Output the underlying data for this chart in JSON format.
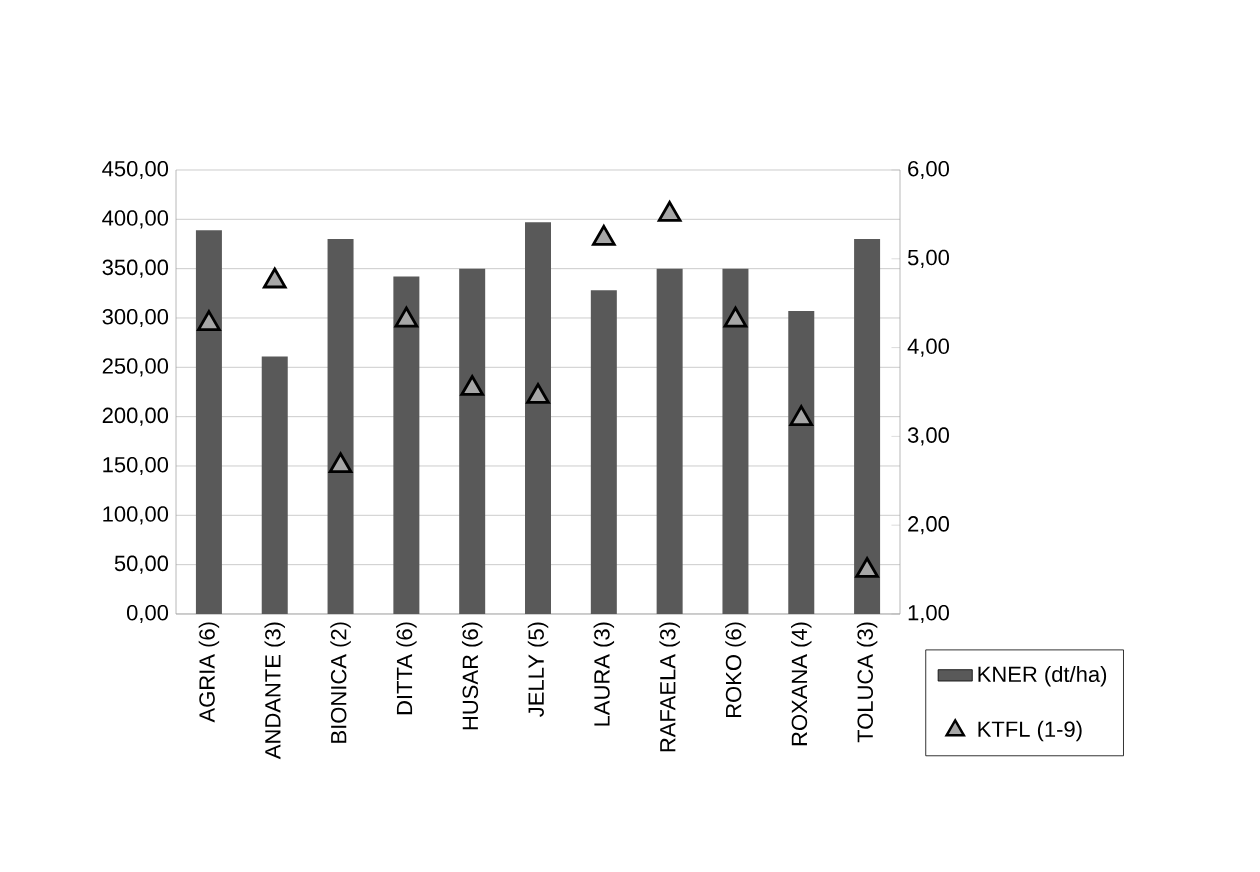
{
  "chart_data": {
    "type": "bar",
    "categories": [
      "AGRIA (6)",
      "ANDANTE (3)",
      "BIONICA (2)",
      "DITTA (6)",
      "HUSAR (6)",
      "JELLY (5)",
      "LAURA (3)",
      "RAFAELA (3)",
      "ROKO (6)",
      "ROXANA (4)",
      "TOLUCA (3)"
    ],
    "series": [
      {
        "name": "KNER (dt/ha)",
        "color": "#595959",
        "values": [
          389,
          261,
          380,
          342,
          350,
          397,
          328,
          350,
          350,
          307,
          380
        ]
      },
      {
        "name": "KTFL (1-9)",
        "type": "scatter",
        "axis": "y2",
        "color": "#000000",
        "marker": "triangle",
        "values": [
          4.27,
          4.75,
          2.67,
          4.31,
          3.54,
          3.45,
          5.23,
          5.5,
          4.31,
          3.2,
          1.49
        ]
      }
    ],
    "ylim": [
      0,
      450
    ],
    "yticks": [
      {
        "value": 0,
        "label": "0,00"
      },
      {
        "value": 50,
        "label": "50,00"
      },
      {
        "value": 100,
        "label": "100,00"
      },
      {
        "value": 150,
        "label": "150,00"
      },
      {
        "value": 200,
        "label": "200,00"
      },
      {
        "value": 250,
        "label": "250,00"
      },
      {
        "value": 300,
        "label": "300,00"
      },
      {
        "value": 350,
        "label": "350,00"
      },
      {
        "value": 400,
        "label": "400,00"
      },
      {
        "value": 450,
        "label": "450,00"
      }
    ],
    "y2lim": [
      1,
      6
    ],
    "y2ticks": [
      {
        "value": 1,
        "label": "1,00"
      },
      {
        "value": 2,
        "label": "2,00"
      },
      {
        "value": 3,
        "label": "3,00"
      },
      {
        "value": 4,
        "label": "4,00"
      },
      {
        "value": 5,
        "label": "5,00"
      },
      {
        "value": 6,
        "label": "6,00"
      }
    ],
    "grid": "y",
    "legend": "bottom right"
  }
}
